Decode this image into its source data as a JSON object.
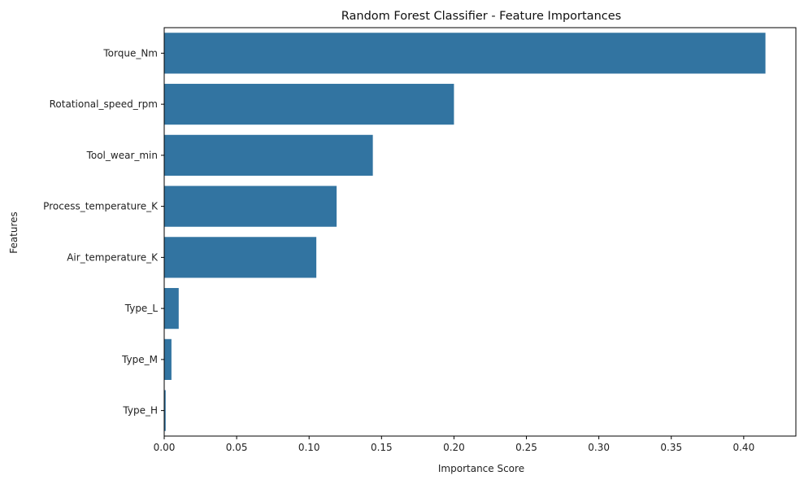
{
  "chart_data": {
    "type": "bar",
    "orientation": "horizontal",
    "title": "Random Forest Classifier - Feature Importances",
    "xlabel": "Importance Score",
    "ylabel": "Features",
    "categories": [
      "Torque_Nm",
      "Rotational_speed_rpm",
      "Tool_wear_min",
      "Process_temperature_K",
      "Air_temperature_K",
      "Type_L",
      "Type_M",
      "Type_H"
    ],
    "values": [
      0.415,
      0.2,
      0.144,
      0.119,
      0.105,
      0.01,
      0.005,
      0.001
    ],
    "xlim": [
      0,
      0.436
    ],
    "xticks": [
      "0.00",
      "0.05",
      "0.10",
      "0.15",
      "0.20",
      "0.25",
      "0.30",
      "0.35",
      "0.40"
    ],
    "grid": false,
    "colors": {
      "bar": "#3274a1"
    }
  }
}
